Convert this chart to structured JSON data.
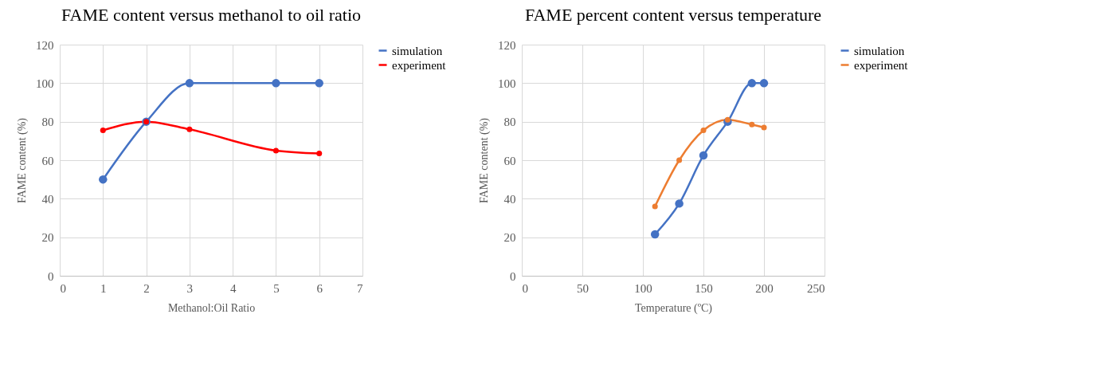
{
  "chart_data": [
    {
      "type": "line",
      "title": "FAME content versus methanol to oil ratio",
      "xlabel": "Methanol:Oil Ratio",
      "ylabel": "FAME content (%)",
      "x": [
        1,
        2,
        3,
        5,
        6
      ],
      "xlim": [
        0,
        7
      ],
      "xticks": [
        0,
        1,
        2,
        3,
        4,
        5,
        6,
        7
      ],
      "ylim": [
        0,
        120
      ],
      "yticks": [
        0,
        20,
        40,
        60,
        80,
        100,
        120
      ],
      "grid": true,
      "legend": "right",
      "marker": "circle",
      "series": [
        {
          "name": "simulation",
          "color": "#4472c4",
          "values": [
            50,
            80,
            100,
            100,
            100
          ]
        },
        {
          "name": "experiment",
          "color": "#ff0000",
          "values": [
            75.5,
            80,
            76,
            65,
            63.5
          ]
        }
      ]
    },
    {
      "type": "line",
      "title": "FAME percent content versus temperature",
      "xlabel": "Temperature (ºC)",
      "ylabel": "FAME content (%)",
      "x": [
        110,
        130,
        150,
        170,
        190,
        200
      ],
      "xlim": [
        0,
        250
      ],
      "xticks": [
        0,
        50,
        100,
        150,
        200,
        250
      ],
      "ylim": [
        0,
        120
      ],
      "yticks": [
        0,
        20,
        40,
        60,
        80,
        100,
        120
      ],
      "grid": true,
      "legend": "right",
      "marker": "circle",
      "series": [
        {
          "name": "simulation",
          "color": "#4472c4",
          "values": [
            21.5,
            37.5,
            62.5,
            80,
            100,
            100
          ]
        },
        {
          "name": "experiment",
          "color": "#ed7d31",
          "values": [
            36,
            60,
            75.5,
            81,
            78.5,
            77
          ]
        }
      ]
    }
  ]
}
